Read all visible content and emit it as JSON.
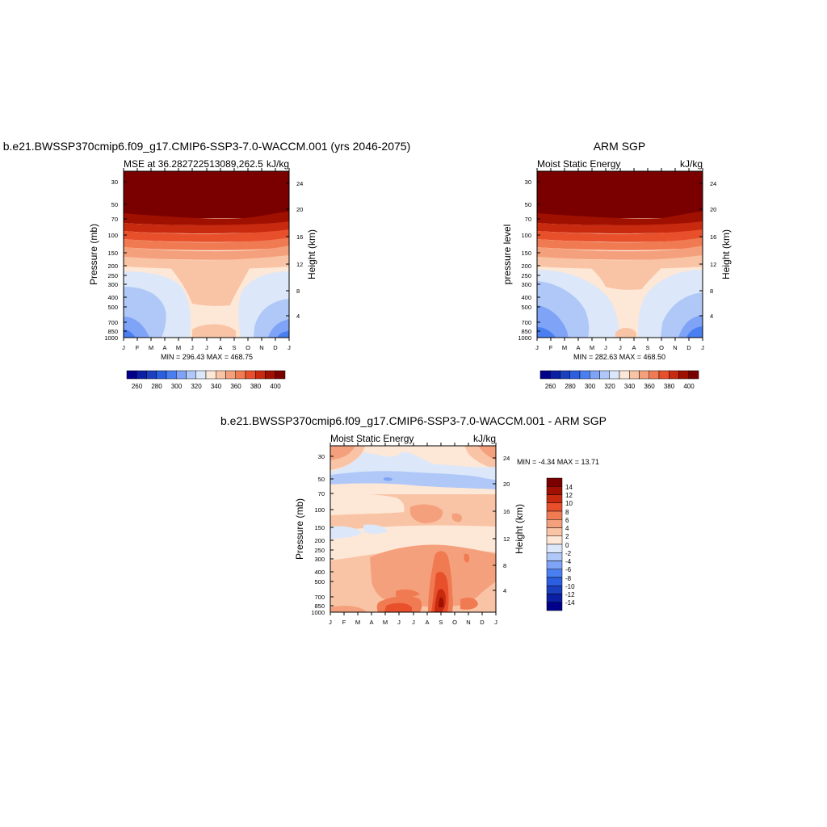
{
  "colors": {
    "ramp_mse": [
      "#00008b",
      "#0a1fa3",
      "#1a3fbf",
      "#2b5fe0",
      "#4a7ff2",
      "#7ea3f7",
      "#b0c8f7",
      "#dce8f9",
      "#fde7d6",
      "#f9c4a5",
      "#f5a07c",
      "#f07a52",
      "#e8502c",
      "#c82a10",
      "#a01000",
      "#7a0000"
    ],
    "ramp_diff": [
      "#00008b",
      "#0a1fa3",
      "#1a3fbf",
      "#2b5fe0",
      "#4a7ff2",
      "#7ea3f7",
      "#b0c8f7",
      "#dce8f9",
      "#fde7d6",
      "#f9c4a5",
      "#f5a07c",
      "#f07a52",
      "#e8502c",
      "#c82a10",
      "#a01000",
      "#7a0000"
    ]
  },
  "chart_data": [
    {
      "type": "heatmap",
      "title": "b.e21.BWSSP370cmip6.f09_g17.CMIP6-SSP3-7.0-WACCM.001 (yrs 2046-2075)",
      "subtitle_left": "MSE at 36.282722513089,262.5",
      "subtitle_right": "kJ/kg",
      "ylabel": "Pressure (mb)",
      "ylabel_right": "Height (km)",
      "x_ticks": [
        "J",
        "F",
        "M",
        "A",
        "M",
        "J",
        "J",
        "A",
        "S",
        "O",
        "N",
        "D",
        "J"
      ],
      "y_ticks": [
        "30",
        "50",
        "70",
        "100",
        "150",
        "200",
        "250",
        "300",
        "400",
        "500",
        "700",
        "850",
        "1000"
      ],
      "y_ticks_right": [
        "24",
        "20",
        "16",
        "12",
        "8",
        "4"
      ],
      "summary": "MIN = 296.43 MAX = 468.75",
      "colorbar_labels": [
        "260",
        "280",
        "300",
        "320",
        "340",
        "360",
        "380",
        "400"
      ]
    },
    {
      "type": "heatmap",
      "title": "ARM SGP",
      "subtitle_left": "Moist Static Energy",
      "subtitle_right": "kJ/kg",
      "ylabel": "pressure level",
      "ylabel_right": "Height (km)",
      "x_ticks": [
        "J",
        "F",
        "M",
        "A",
        "M",
        "J",
        "J",
        "A",
        "S",
        "O",
        "N",
        "D",
        "J"
      ],
      "y_ticks": [
        "30",
        "50",
        "70",
        "100",
        "150",
        "200",
        "250",
        "300",
        "400",
        "500",
        "700",
        "850",
        "1000"
      ],
      "y_ticks_right": [
        "24",
        "20",
        "16",
        "12",
        "8",
        "4"
      ],
      "summary": "MIN = 282.63 MAX = 468.50",
      "colorbar_labels": [
        "260",
        "280",
        "300",
        "320",
        "340",
        "360",
        "380",
        "400"
      ]
    },
    {
      "type": "heatmap",
      "title": "b.e21.BWSSP370cmip6.f09_g17.CMIP6-SSP3-7.0-WACCM.001 - ARM SGP",
      "subtitle_left": "Moist Static Energy",
      "subtitle_right": "kJ/kg",
      "ylabel": "Pressure (mb)",
      "ylabel_right": "Height (km)",
      "x_ticks": [
        "J",
        "F",
        "M",
        "A",
        "M",
        "J",
        "J",
        "A",
        "S",
        "O",
        "N",
        "D",
        "J"
      ],
      "y_ticks": [
        "30",
        "50",
        "70",
        "100",
        "150",
        "200",
        "250",
        "300",
        "400",
        "500",
        "700",
        "850",
        "1000"
      ],
      "y_ticks_right": [
        "24",
        "20",
        "16",
        "12",
        "8",
        "4"
      ],
      "summary": "MIN =  -4.34 MAX =  13.71",
      "colorbar_labels": [
        "14",
        "12",
        "10",
        "8",
        "6",
        "4",
        "2",
        "0",
        "-2",
        "-4",
        "-6",
        "-8",
        "-10",
        "-12",
        "-14"
      ]
    }
  ]
}
